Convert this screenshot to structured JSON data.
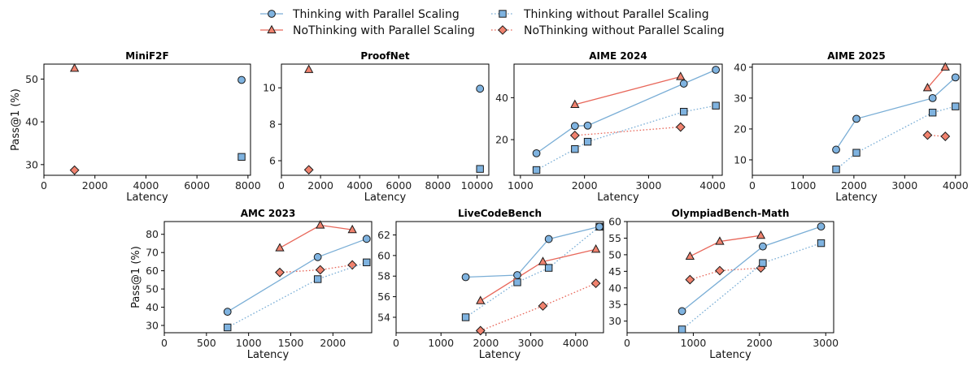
{
  "legend": {
    "entries": [
      {
        "label": "Thinking with Parallel Scaling",
        "series": "thinking_parallel"
      },
      {
        "label": "NoThinking with Parallel Scaling",
        "series": "nothinking_parallel"
      },
      {
        "label": "Thinking without Parallel Scaling",
        "series": "thinking_noparallel"
      },
      {
        "label": "NoThinking without Parallel Scaling",
        "series": "nothinking_noparallel"
      }
    ]
  },
  "styles": {
    "thinking_parallel": {
      "line": "#7aaed6",
      "fill": "#7fb3e0",
      "dash": "solid",
      "marker": "circle"
    },
    "nothinking_parallel": {
      "line": "#e8675a",
      "fill": "#f0826e",
      "dash": "solid",
      "marker": "triangle"
    },
    "thinking_noparallel": {
      "line": "#7aaed6",
      "fill": "#7fb3e0",
      "dash": "dotted",
      "marker": "square"
    },
    "nothinking_noparallel": {
      "line": "#e8675a",
      "fill": "#f0826e",
      "dash": "dotted",
      "marker": "diamond"
    }
  },
  "chart_data": [
    {
      "type": "line",
      "title": "MiniF2F",
      "xlabel": "Latency",
      "ylabel": "Pass@1 (%)",
      "xlim": [
        0,
        8100
      ],
      "ylim": [
        27.5,
        53.5
      ],
      "xticks": [
        0,
        2000,
        4000,
        6000,
        8000
      ],
      "yticks": [
        30,
        40,
        50
      ],
      "series": [
        {
          "key": "thinking_parallel",
          "x": [
            7750
          ],
          "y": [
            49.8
          ]
        },
        {
          "key": "nothinking_parallel",
          "x": [
            1200
          ],
          "y": [
            52.5
          ]
        },
        {
          "key": "thinking_noparallel",
          "x": [
            7750
          ],
          "y": [
            31.8
          ]
        },
        {
          "key": "nothinking_noparallel",
          "x": [
            1200
          ],
          "y": [
            28.7
          ]
        }
      ]
    },
    {
      "type": "line",
      "title": "ProofNet",
      "xlabel": "Latency",
      "ylabel": "",
      "xlim": [
        0,
        10600
      ],
      "ylim": [
        5.2,
        11.3
      ],
      "xticks": [
        0,
        2000,
        4000,
        6000,
        8000,
        10000
      ],
      "yticks": [
        6,
        8,
        10
      ],
      "series": [
        {
          "key": "thinking_parallel",
          "x": [
            10150
          ],
          "y": [
            9.95
          ]
        },
        {
          "key": "nothinking_parallel",
          "x": [
            1400
          ],
          "y": [
            11.0
          ]
        },
        {
          "key": "thinking_noparallel",
          "x": [
            10150
          ],
          "y": [
            5.55
          ]
        },
        {
          "key": "nothinking_noparallel",
          "x": [
            1400
          ],
          "y": [
            5.5
          ]
        }
      ]
    },
    {
      "type": "line",
      "title": "AIME 2024",
      "xlabel": "Latency",
      "ylabel": "",
      "xlim": [
        900,
        4150
      ],
      "ylim": [
        3,
        56
      ],
      "xticks": [
        1000,
        2000,
        3000,
        4000
      ],
      "yticks": [
        20,
        40
      ],
      "series": [
        {
          "key": "thinking_parallel",
          "x": [
            1250,
            1850,
            2050,
            3550,
            4050
          ],
          "y": [
            13.5,
            26.5,
            26.7,
            46.7,
            53.3
          ]
        },
        {
          "key": "nothinking_parallel",
          "x": [
            1850,
            3500
          ],
          "y": [
            36.7,
            50.0
          ]
        },
        {
          "key": "thinking_noparallel",
          "x": [
            1250,
            1850,
            2050,
            3550,
            4050
          ],
          "y": [
            5.5,
            15.5,
            19.0,
            33.3,
            36.2
          ]
        },
        {
          "key": "nothinking_noparallel",
          "x": [
            1850,
            3500
          ],
          "y": [
            22.0,
            26.0
          ]
        }
      ]
    },
    {
      "type": "line",
      "title": "AIME 2025",
      "xlabel": "Latency",
      "ylabel": "",
      "xlim": [
        0,
        4100
      ],
      "ylim": [
        5,
        41
      ],
      "xticks": [
        0,
        1000,
        2000,
        3000,
        4000
      ],
      "yticks": [
        10,
        20,
        30,
        40
      ],
      "series": [
        {
          "key": "thinking_parallel",
          "x": [
            1650,
            2050,
            3550,
            4000
          ],
          "y": [
            13.3,
            23.3,
            30.0,
            36.7
          ]
        },
        {
          "key": "nothinking_parallel",
          "x": [
            3450,
            3800
          ],
          "y": [
            33.3,
            40.0
          ]
        },
        {
          "key": "thinking_noparallel",
          "x": [
            1650,
            2050,
            3550,
            4000
          ],
          "y": [
            6.9,
            12.3,
            25.3,
            27.3
          ]
        },
        {
          "key": "nothinking_noparallel",
          "x": [
            3450,
            3800
          ],
          "y": [
            18.0,
            17.6
          ]
        }
      ]
    },
    {
      "type": "line",
      "title": "AMC 2023",
      "xlabel": "Latency",
      "ylabel": "Pass@1 (%)",
      "xlim": [
        0,
        2460
      ],
      "ylim": [
        26,
        87
      ],
      "xticks": [
        0,
        500,
        1000,
        1500,
        2000
      ],
      "yticks": [
        30,
        40,
        50,
        60,
        70,
        80
      ],
      "series": [
        {
          "key": "thinking_parallel",
          "x": [
            750,
            1820,
            2400
          ],
          "y": [
            37.5,
            67.5,
            77.5
          ]
        },
        {
          "key": "nothinking_parallel",
          "x": [
            1370,
            1850,
            2230
          ],
          "y": [
            72.5,
            85.0,
            82.5
          ]
        },
        {
          "key": "thinking_noparallel",
          "x": [
            750,
            1820,
            2400
          ],
          "y": [
            28.9,
            55.4,
            64.6
          ]
        },
        {
          "key": "nothinking_noparallel",
          "x": [
            1370,
            1850,
            2230
          ],
          "y": [
            59.1,
            60.5,
            63.2
          ]
        }
      ]
    },
    {
      "type": "line",
      "title": "LiveCodeBench",
      "xlabel": "Latency",
      "ylabel": "",
      "xlim": [
        0,
        4620
      ],
      "ylim": [
        52.5,
        63.3
      ],
      "xticks": [
        0,
        1000,
        2000,
        3000,
        4000
      ],
      "yticks": [
        54,
        56,
        58,
        60,
        62
      ],
      "series": [
        {
          "key": "thinking_parallel",
          "x": [
            1550,
            2700,
            3400,
            4530
          ],
          "y": [
            57.9,
            58.1,
            61.6,
            62.8
          ]
        },
        {
          "key": "nothinking_parallel",
          "x": [
            1880,
            3270,
            4450
          ],
          "y": [
            55.6,
            59.4,
            60.6
          ]
        },
        {
          "key": "thinking_noparallel",
          "x": [
            1550,
            2700,
            3400,
            4530
          ],
          "y": [
            54.0,
            57.4,
            58.8,
            62.8
          ]
        },
        {
          "key": "nothinking_noparallel",
          "x": [
            1880,
            3270,
            4450
          ],
          "y": [
            52.7,
            55.1,
            57.3
          ]
        }
      ]
    },
    {
      "type": "line",
      "title": "OlympiadBench-Math",
      "xlabel": "Latency",
      "ylabel": "",
      "xlim": [
        0,
        3120
      ],
      "ylim": [
        26.5,
        60
      ],
      "xticks": [
        0,
        1000,
        2000,
        3000
      ],
      "yticks": [
        30,
        35,
        40,
        45,
        50,
        55,
        60
      ],
      "series": [
        {
          "key": "thinking_parallel",
          "x": [
            830,
            2050,
            2930
          ],
          "y": [
            33.0,
            52.5,
            58.5
          ]
        },
        {
          "key": "nothinking_parallel",
          "x": [
            950,
            1400,
            2020
          ],
          "y": [
            49.5,
            54.0,
            55.8
          ]
        },
        {
          "key": "thinking_noparallel",
          "x": [
            830,
            2050,
            2930
          ],
          "y": [
            27.5,
            47.5,
            53.5
          ]
        },
        {
          "key": "nothinking_noparallel",
          "x": [
            950,
            1400,
            2020
          ],
          "y": [
            42.5,
            45.2,
            46.0
          ]
        }
      ]
    }
  ]
}
